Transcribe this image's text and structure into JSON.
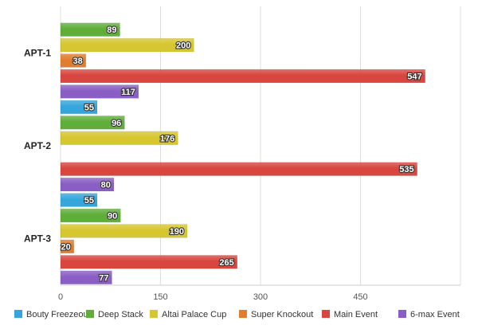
{
  "chart_data": {
    "type": "bar",
    "orientation": "horizontal",
    "categories": [
      "APT-1",
      "APT-2",
      "APT-3"
    ],
    "series": [
      {
        "name": "Bouty Freezeout",
        "color": "#35a6dc",
        "values": [
          null,
          55,
          55
        ]
      },
      {
        "name": "Deep Stack",
        "color": "#5fae3a",
        "values": [
          89,
          96,
          90
        ]
      },
      {
        "name": "Altai Palace Cup",
        "color": "#d6c62f",
        "values": [
          200,
          176,
          190
        ]
      },
      {
        "name": "Super Knockout",
        "color": "#e07d2e",
        "values": [
          38,
          null,
          20
        ]
      },
      {
        "name": "Main Event",
        "color": "#d8463f",
        "values": [
          547,
          535,
          265
        ]
      },
      {
        "name": "6-max Event",
        "color": "#8a5ec4",
        "values": [
          117,
          80,
          77
        ]
      }
    ],
    "xlim": [
      0,
      600
    ],
    "xticks": [
      0,
      150,
      300,
      450
    ],
    "xtick_labels": [
      "0",
      "150",
      "300",
      "450"
    ],
    "grid": true,
    "legend_position": "bottom"
  }
}
